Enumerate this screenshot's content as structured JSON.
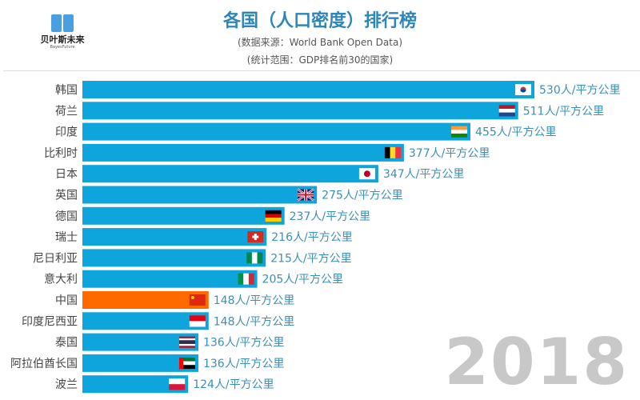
{
  "logo": {
    "name": "贝叶斯未来",
    "sub": "BayesFuture"
  },
  "title": "各国（人口密度）排行榜",
  "subtitle1": "(数据来源：World Bank Open Data)",
  "subtitle2": "(统计范围：GDP排名前30的国家)",
  "year": "2018",
  "colors": {
    "bar": "#0ea5dd",
    "highlight": "#ff6a00",
    "label": "#3a8fb7"
  },
  "chart_data": {
    "type": "bar",
    "orientation": "horizontal",
    "unit": "人/平方公里",
    "categories": [
      "韩国",
      "荷兰",
      "印度",
      "比利时",
      "日本",
      "英国",
      "德国",
      "瑞士",
      "尼日利亚",
      "意大利",
      "中国",
      "印度尼西亚",
      "泰国",
      "阿拉伯酋长国",
      "波兰"
    ],
    "values": [
      530,
      511,
      455,
      377,
      347,
      275,
      237,
      216,
      215,
      205,
      148,
      148,
      136,
      136,
      124
    ],
    "flags": [
      "kr",
      "nl",
      "in",
      "be",
      "jp",
      "gb",
      "de",
      "ch",
      "ng",
      "it",
      "cn",
      "id",
      "th",
      "ae",
      "pl"
    ],
    "highlight": "中国"
  }
}
